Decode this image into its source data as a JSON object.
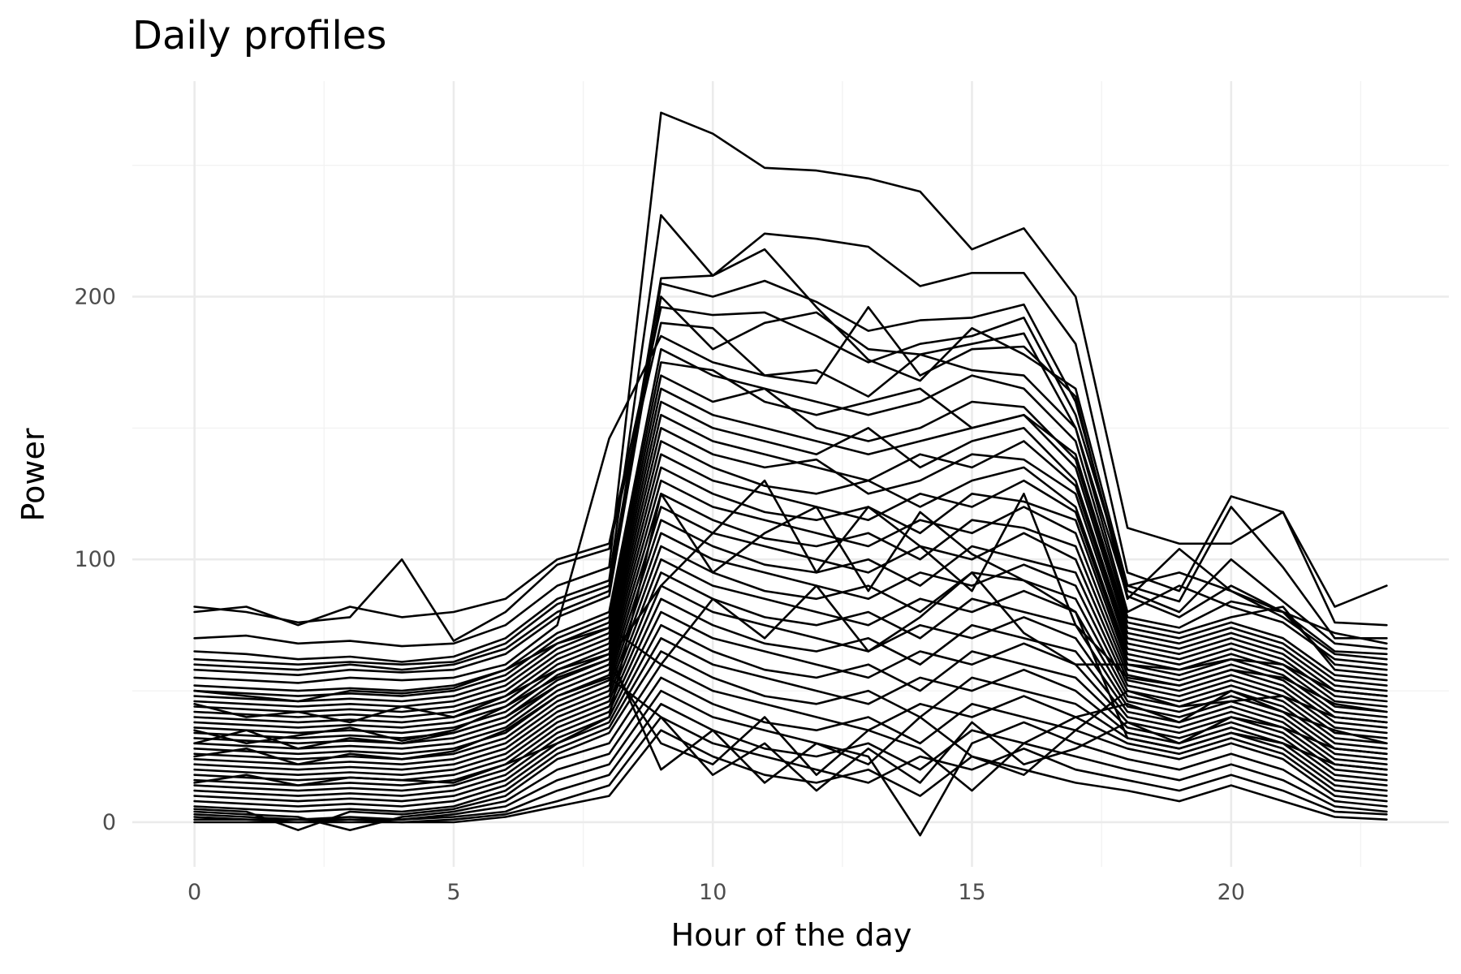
{
  "chart_data": {
    "type": "line",
    "title": "Daily profiles",
    "xlabel": "Hour of the day",
    "ylabel": "Power",
    "xlim": [
      -1.2,
      24.2
    ],
    "ylim": [
      -17,
      282
    ],
    "x_ticks": [
      0,
      5,
      10,
      15,
      20
    ],
    "x_tick_labels": [
      "0",
      "5",
      "10",
      "15",
      "20"
    ],
    "y_ticks": [
      0,
      100,
      200
    ],
    "y_tick_labels": [
      "0",
      "100",
      "200"
    ],
    "grid": true,
    "legend": "none",
    "line_color": "#000000",
    "x": [
      0,
      1,
      2,
      3,
      4,
      5,
      6,
      7,
      8,
      9,
      10,
      11,
      12,
      13,
      14,
      15,
      16,
      17,
      18,
      19,
      20,
      21,
      22,
      23
    ],
    "series": [
      {
        "values": [
          70,
          71,
          68,
          69,
          67,
          68,
          75,
          90,
          97,
          270,
          262,
          249,
          248,
          245,
          240,
          218,
          226,
          200,
          112,
          106,
          106,
          118,
          82,
          90
        ]
      },
      {
        "values": [
          65,
          64,
          62,
          63,
          61,
          63,
          70,
          85,
          92,
          231,
          208,
          224,
          222,
          219,
          204,
          209,
          209,
          182,
          95,
          88,
          124,
          118,
          76,
          75
        ]
      },
      {
        "values": [
          62,
          61,
          60,
          61,
          60,
          61,
          68,
          83,
          90,
          207,
          208,
          218,
          196,
          176,
          168,
          188,
          178,
          165,
          90,
          84,
          120,
          97,
          70,
          70
        ]
      },
      {
        "values": [
          60,
          59,
          58,
          60,
          58,
          60,
          66,
          80,
          88,
          205,
          200,
          206,
          198,
          187,
          191,
          192,
          197,
          160,
          88,
          80,
          100,
          84,
          68,
          66
        ]
      },
      {
        "values": [
          58,
          57,
          56,
          58,
          57,
          58,
          64,
          78,
          86,
          200,
          180,
          190,
          194,
          180,
          178,
          182,
          186,
          150,
          86,
          78,
          90,
          80,
          65,
          64
        ]
      },
      {
        "values": [
          80,
          82,
          75,
          82,
          78,
          80,
          85,
          100,
          106,
          196,
          193,
          194,
          185,
          175,
          182,
          185,
          192,
          155,
          90,
          95,
          88,
          80,
          72,
          68
        ]
      },
      {
        "values": [
          82,
          80,
          76,
          78,
          100,
          69,
          80,
          98,
          104,
          190,
          188,
          170,
          167,
          196,
          170,
          180,
          181,
          162,
          85,
          104,
          88,
          78,
          64,
          62
        ]
      },
      {
        "values": [
          55,
          54,
          53,
          55,
          54,
          55,
          60,
          75,
          146,
          185,
          175,
          170,
          172,
          162,
          178,
          172,
          170,
          150,
          80,
          90,
          82,
          76,
          62,
          60
        ]
      },
      {
        "values": [
          52,
          51,
          50,
          51,
          50,
          52,
          58,
          72,
          80,
          180,
          170,
          165,
          160,
          155,
          160,
          170,
          165,
          145,
          78,
          74,
          84,
          80,
          60,
          58
        ]
      },
      {
        "values": [
          50,
          49,
          48,
          49,
          48,
          50,
          56,
          70,
          78,
          175,
          172,
          160,
          155,
          160,
          165,
          150,
          155,
          140,
          76,
          72,
          78,
          82,
          58,
          56
        ]
      },
      {
        "values": [
          48,
          47,
          46,
          47,
          46,
          48,
          54,
          68,
          76,
          170,
          160,
          165,
          150,
          145,
          150,
          160,
          158,
          138,
          74,
          70,
          76,
          70,
          56,
          54
        ]
      },
      {
        "values": [
          46,
          45,
          44,
          45,
          44,
          46,
          52,
          66,
          74,
          165,
          155,
          150,
          145,
          140,
          145,
          150,
          155,
          135,
          72,
          68,
          74,
          68,
          54,
          52
        ]
      },
      {
        "values": [
          44,
          43,
          42,
          43,
          42,
          44,
          50,
          64,
          72,
          160,
          150,
          145,
          140,
          150,
          135,
          145,
          150,
          130,
          70,
          66,
          72,
          66,
          52,
          50
        ]
      },
      {
        "values": [
          42,
          41,
          40,
          41,
          40,
          42,
          48,
          62,
          70,
          155,
          145,
          140,
          135,
          130,
          140,
          135,
          145,
          128,
          68,
          64,
          70,
          64,
          50,
          48
        ]
      },
      {
        "values": [
          40,
          39,
          38,
          39,
          38,
          40,
          46,
          60,
          68,
          150,
          140,
          135,
          138,
          125,
          130,
          140,
          138,
          125,
          66,
          62,
          68,
          62,
          48,
          46
        ]
      },
      {
        "values": [
          38,
          37,
          36,
          37,
          36,
          38,
          44,
          58,
          66,
          145,
          135,
          128,
          125,
          130,
          120,
          130,
          135,
          120,
          64,
          60,
          66,
          60,
          46,
          44
        ]
      },
      {
        "values": [
          36,
          35,
          34,
          35,
          34,
          36,
          42,
          56,
          64,
          140,
          130,
          125,
          120,
          115,
          125,
          120,
          130,
          118,
          62,
          58,
          64,
          58,
          44,
          42
        ]
      },
      {
        "values": [
          34,
          33,
          32,
          33,
          32,
          34,
          40,
          54,
          62,
          135,
          125,
          118,
          115,
          120,
          110,
          125,
          122,
          115,
          60,
          56,
          62,
          56,
          42,
          40
        ]
      },
      {
        "values": [
          32,
          31,
          30,
          31,
          30,
          32,
          38,
          52,
          60,
          130,
          120,
          115,
          110,
          105,
          115,
          110,
          120,
          110,
          58,
          54,
          60,
          54,
          40,
          38
        ]
      },
      {
        "values": [
          30,
          29,
          28,
          29,
          28,
          30,
          36,
          50,
          58,
          125,
          115,
          108,
          105,
          110,
          100,
          115,
          112,
          105,
          56,
          52,
          58,
          52,
          38,
          36
        ]
      },
      {
        "values": [
          28,
          27,
          26,
          27,
          26,
          28,
          34,
          48,
          56,
          120,
          110,
          105,
          100,
          95,
          105,
          100,
          110,
          100,
          54,
          50,
          56,
          50,
          36,
          34
        ]
      },
      {
        "values": [
          26,
          25,
          24,
          25,
          24,
          26,
          32,
          46,
          54,
          115,
          105,
          98,
          95,
          100,
          90,
          105,
          100,
          95,
          52,
          48,
          54,
          48,
          34,
          32
        ]
      },
      {
        "values": [
          24,
          23,
          22,
          23,
          22,
          24,
          30,
          44,
          52,
          110,
          100,
          95,
          90,
          85,
          95,
          90,
          98,
          90,
          50,
          46,
          52,
          46,
          32,
          30
        ]
      },
      {
        "values": [
          22,
          21,
          20,
          21,
          20,
          22,
          28,
          42,
          50,
          105,
          95,
          88,
          85,
          90,
          80,
          95,
          92,
          85,
          48,
          44,
          50,
          44,
          30,
          28
        ]
      },
      {
        "values": [
          20,
          19,
          18,
          19,
          18,
          20,
          26,
          40,
          48,
          100,
          90,
          85,
          80,
          75,
          85,
          80,
          88,
          80,
          46,
          42,
          48,
          42,
          28,
          26
        ]
      },
      {
        "values": [
          18,
          17,
          16,
          17,
          16,
          18,
          24,
          38,
          46,
          95,
          85,
          78,
          75,
          80,
          70,
          85,
          80,
          75,
          44,
          40,
          46,
          40,
          26,
          24
        ]
      },
      {
        "values": [
          16,
          15,
          14,
          15,
          14,
          16,
          22,
          36,
          44,
          90,
          80,
          75,
          70,
          65,
          75,
          70,
          78,
          70,
          42,
          38,
          44,
          38,
          24,
          22
        ]
      },
      {
        "values": [
          14,
          13,
          12,
          13,
          12,
          14,
          20,
          34,
          42,
          85,
          75,
          68,
          65,
          70,
          60,
          75,
          70,
          65,
          40,
          36,
          42,
          36,
          22,
          20
        ]
      },
      {
        "values": [
          12,
          11,
          10,
          11,
          10,
          12,
          18,
          32,
          40,
          80,
          70,
          65,
          60,
          55,
          65,
          60,
          68,
          60,
          38,
          34,
          40,
          34,
          20,
          18
        ]
      },
      {
        "values": [
          10,
          9,
          8,
          9,
          8,
          10,
          16,
          30,
          38,
          75,
          65,
          58,
          55,
          60,
          50,
          65,
          60,
          55,
          36,
          32,
          38,
          32,
          18,
          16
        ]
      },
      {
        "values": [
          8,
          7,
          6,
          7,
          6,
          8,
          14,
          28,
          36,
          70,
          60,
          55,
          50,
          45,
          55,
          50,
          58,
          50,
          34,
          30,
          36,
          30,
          16,
          14
        ]
      },
      {
        "values": [
          6,
          5,
          4,
          5,
          4,
          6,
          12,
          26,
          34,
          65,
          55,
          48,
          45,
          50,
          40,
          55,
          50,
          45,
          32,
          28,
          34,
          28,
          14,
          12
        ]
      },
      {
        "values": [
          5,
          4,
          -3,
          4,
          3,
          5,
          10,
          24,
          30,
          60,
          50,
          45,
          40,
          35,
          45,
          40,
          48,
          40,
          30,
          26,
          32,
          26,
          12,
          10
        ]
      },
      {
        "values": [
          4,
          3,
          2,
          -3,
          2,
          4,
          8,
          20,
          26,
          55,
          45,
          38,
          35,
          40,
          30,
          45,
          40,
          35,
          28,
          24,
          30,
          24,
          10,
          8
        ]
      },
      {
        "values": [
          3,
          2,
          1,
          2,
          1,
          3,
          6,
          16,
          22,
          50,
          40,
          35,
          30,
          25,
          -5,
          30,
          38,
          30,
          24,
          20,
          26,
          20,
          8,
          6
        ]
      },
      {
        "values": [
          2,
          1,
          1,
          1,
          1,
          2,
          4,
          12,
          18,
          45,
          35,
          28,
          25,
          30,
          20,
          35,
          30,
          25,
          20,
          16,
          22,
          16,
          6,
          4
        ]
      },
      {
        "values": [
          1,
          1,
          0,
          1,
          0,
          1,
          3,
          8,
          14,
          40,
          30,
          25,
          20,
          15,
          25,
          20,
          28,
          20,
          16,
          12,
          18,
          12,
          4,
          3
        ]
      },
      {
        "values": [
          0,
          0,
          0,
          0,
          0,
          0,
          2,
          6,
          10,
          35,
          25,
          18,
          15,
          20,
          10,
          25,
          20,
          15,
          12,
          8,
          14,
          8,
          2,
          1
        ]
      },
      {
        "values": [
          30,
          35,
          28,
          32,
          30,
          34,
          40,
          52,
          60,
          30,
          22,
          40,
          18,
          35,
          28,
          12,
          30,
          40,
          45,
          38,
          50,
          42,
          35,
          30
        ]
      },
      {
        "values": [
          45,
          40,
          42,
          38,
          44,
          40,
          48,
          58,
          64,
          20,
          35,
          15,
          30,
          22,
          40,
          25,
          18,
          35,
          50,
          44,
          46,
          48,
          40,
          38
        ]
      },
      {
        "values": [
          25,
          28,
          22,
          26,
          24,
          27,
          35,
          48,
          55,
          40,
          18,
          30,
          12,
          28,
          15,
          38,
          22,
          28,
          38,
          30,
          40,
          36,
          28,
          26
        ]
      },
      {
        "values": [
          35,
          30,
          33,
          36,
          31,
          35,
          44,
          55,
          62,
          90,
          110,
          130,
          95,
          120,
          105,
          88,
          125,
          75,
          55,
          52,
          58,
          55,
          45,
          42
        ]
      },
      {
        "values": [
          15,
          18,
          14,
          17,
          16,
          15,
          22,
          30,
          40,
          125,
          95,
          110,
          120,
          88,
          118,
          102,
          92,
          80,
          32,
          28,
          34,
          30,
          22,
          20
        ]
      },
      {
        "values": [
          50,
          48,
          46,
          50,
          49,
          51,
          58,
          68,
          74,
          60,
          85,
          70,
          90,
          65,
          78,
          95,
          72,
          60,
          60,
          58,
          62,
          60,
          50,
          48
        ]
      }
    ]
  }
}
